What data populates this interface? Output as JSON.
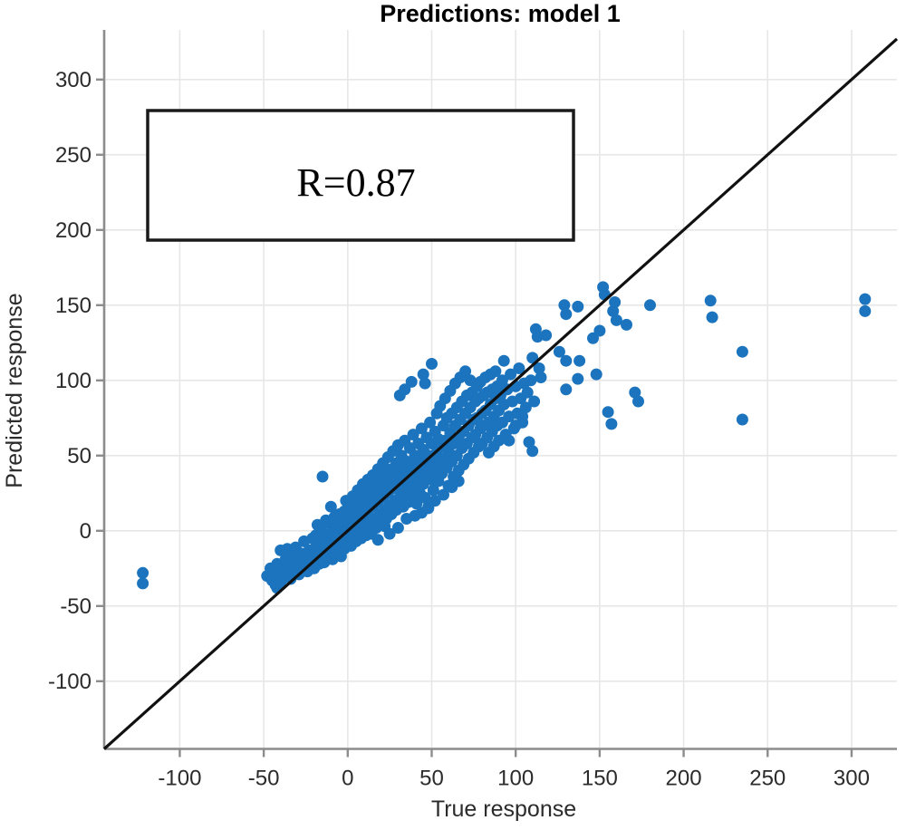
{
  "chart_data": {
    "type": "scatter",
    "title": "Predictions: model 1",
    "xlabel": "True response",
    "ylabel": "Predicted response",
    "annotation": "R=0.87",
    "xlim": [
      -145,
      327
    ],
    "ylim": [
      -145,
      333
    ],
    "xticks": [
      -100,
      -50,
      0,
      50,
      100,
      150,
      200,
      250,
      300
    ],
    "yticks": [
      -100,
      -50,
      0,
      50,
      100,
      150,
      200,
      250,
      300
    ],
    "grid": true,
    "identity_line": true,
    "legend": "none",
    "marker_radius_px": 6.5,
    "points": [
      [
        -48,
        -30
      ],
      [
        -46,
        -25
      ],
      [
        -45,
        -33
      ],
      [
        -44,
        -28
      ],
      [
        -43,
        -36
      ],
      [
        -42,
        -38
      ],
      [
        -42,
        -22
      ],
      [
        -41,
        -30
      ],
      [
        -40,
        -34
      ],
      [
        -40,
        -13
      ],
      [
        -39,
        -26
      ],
      [
        -38,
        -31
      ],
      [
        -37,
        -19
      ],
      [
        -36,
        -12
      ],
      [
        -36,
        -28
      ],
      [
        -35,
        -23
      ],
      [
        -34,
        -32
      ],
      [
        -33,
        -17
      ],
      [
        -32,
        -26
      ],
      [
        -31,
        -11
      ],
      [
        -30,
        -21
      ],
      [
        -29,
        -29
      ],
      [
        -28,
        -15
      ],
      [
        -27,
        -24
      ],
      [
        -26,
        -7
      ],
      [
        -25,
        -18
      ],
      [
        -24,
        -27
      ],
      [
        -23,
        -13
      ],
      [
        -22,
        -20
      ],
      [
        -21,
        -5
      ],
      [
        -20,
        -25
      ],
      [
        -20,
        -12
      ],
      [
        -19,
        -3
      ],
      [
        -18,
        -17
      ],
      [
        -18,
        4
      ],
      [
        -17,
        -22
      ],
      [
        -16,
        -9
      ],
      [
        -16,
        1
      ],
      [
        -15,
        -14
      ],
      [
        -14,
        -2
      ],
      [
        -14,
        -21
      ],
      [
        -13,
        7
      ],
      [
        -13,
        -11
      ],
      [
        -12,
        -17
      ],
      [
        -11,
        -5
      ],
      [
        -11,
        5
      ],
      [
        -10,
        -13
      ],
      [
        -10,
        16
      ],
      [
        -9,
        -1
      ],
      [
        -9,
        -19
      ],
      [
        -8,
        9
      ],
      [
        -8,
        -8
      ],
      [
        -7,
        -15
      ],
      [
        -6,
        2
      ],
      [
        -6,
        -3
      ],
      [
        -5,
        11
      ],
      [
        -5,
        -10
      ],
      [
        -4,
        -17
      ],
      [
        -3,
        5
      ],
      [
        -3,
        -5
      ],
      [
        -2,
        13
      ],
      [
        -2,
        -12
      ],
      [
        -1,
        0
      ],
      [
        -1,
        20
      ],
      [
        0,
        -8
      ],
      [
        0,
        7
      ],
      [
        1,
        10
      ],
      [
        1,
        -4
      ],
      [
        2,
        17
      ],
      [
        2,
        -10
      ],
      [
        3,
        4
      ],
      [
        3,
        23
      ],
      [
        4,
        -2
      ],
      [
        4,
        13
      ],
      [
        5,
        20
      ],
      [
        5,
        -7
      ],
      [
        6,
        7
      ],
      [
        6,
        27
      ],
      [
        7,
        1
      ],
      [
        7,
        14
      ],
      [
        8,
        -5
      ],
      [
        8,
        21
      ],
      [
        9,
        11
      ],
      [
        9,
        31
      ],
      [
        10,
        4
      ],
      [
        10,
        18
      ],
      [
        11,
        -3
      ],
      [
        11,
        24
      ],
      [
        12,
        13
      ],
      [
        12,
        34
      ],
      [
        13,
        6
      ],
      [
        13,
        21
      ],
      [
        14,
        -2
      ],
      [
        14,
        29
      ],
      [
        15,
        16
      ],
      [
        15,
        37
      ],
      [
        16,
        8
      ],
      [
        16,
        24
      ],
      [
        17,
        2
      ],
      [
        17,
        32
      ],
      [
        18,
        19
      ],
      [
        18,
        41
      ],
      [
        19,
        11
      ],
      [
        19,
        27
      ],
      [
        20,
        5
      ],
      [
        20,
        35
      ],
      [
        21,
        22
      ],
      [
        21,
        45
      ],
      [
        22,
        14
      ],
      [
        22,
        30
      ],
      [
        23,
        8
      ],
      [
        23,
        38
      ],
      [
        24,
        25
      ],
      [
        24,
        49
      ],
      [
        25,
        17
      ],
      [
        25,
        33
      ],
      [
        26,
        11
      ],
      [
        26,
        41
      ],
      [
        27,
        28
      ],
      [
        27,
        53
      ],
      [
        28,
        20
      ],
      [
        28,
        36
      ],
      [
        29,
        14
      ],
      [
        29,
        45
      ],
      [
        30,
        31
      ],
      [
        30,
        57
      ],
      [
        22,
        3
      ],
      [
        12,
        0
      ],
      [
        18,
        -6
      ],
      [
        25,
        -2
      ],
      [
        30,
        2
      ],
      [
        35,
        8
      ],
      [
        40,
        10
      ],
      [
        44,
        12
      ],
      [
        48,
        16
      ],
      [
        52,
        20
      ],
      [
        57,
        24
      ],
      [
        62,
        29
      ],
      [
        66,
        33
      ],
      [
        31,
        90
      ],
      [
        34,
        94
      ],
      [
        38,
        99
      ],
      [
        45,
        104
      ],
      [
        50,
        111
      ],
      [
        46,
        98
      ],
      [
        31,
        38
      ],
      [
        31,
        22
      ],
      [
        32,
        50
      ],
      [
        32,
        28
      ],
      [
        33,
        16
      ],
      [
        33,
        42
      ],
      [
        34,
        34
      ],
      [
        34,
        60
      ],
      [
        35,
        25
      ],
      [
        35,
        46
      ],
      [
        36,
        19
      ],
      [
        36,
        38
      ],
      [
        37,
        55
      ],
      [
        37,
        30
      ],
      [
        38,
        44
      ],
      [
        38,
        22
      ],
      [
        39,
        64
      ],
      [
        39,
        35
      ],
      [
        40,
        27
      ],
      [
        40,
        50
      ],
      [
        41,
        41
      ],
      [
        41,
        18
      ],
      [
        42,
        58
      ],
      [
        42,
        33
      ],
      [
        43,
        47
      ],
      [
        43,
        25
      ],
      [
        44,
        68
      ],
      [
        44,
        39
      ],
      [
        45,
        31
      ],
      [
        45,
        54
      ],
      [
        46,
        44
      ],
      [
        46,
        22
      ],
      [
        47,
        62
      ],
      [
        47,
        37
      ],
      [
        48,
        15
      ],
      [
        48,
        50
      ],
      [
        49,
        72
      ],
      [
        49,
        42
      ],
      [
        50,
        34
      ],
      [
        50,
        58
      ],
      [
        51,
        47
      ],
      [
        51,
        27
      ],
      [
        52,
        66
      ],
      [
        52,
        40
      ],
      [
        53,
        78
      ],
      [
        53,
        52
      ],
      [
        54,
        33
      ],
      [
        54,
        61
      ],
      [
        55,
        45
      ],
      [
        55,
        83
      ],
      [
        56,
        56
      ],
      [
        56,
        38
      ],
      [
        57,
        70
      ],
      [
        57,
        48
      ],
      [
        58,
        88
      ],
      [
        58,
        60
      ],
      [
        59,
        42
      ],
      [
        59,
        75
      ],
      [
        60,
        53
      ],
      [
        60,
        30
      ],
      [
        61,
        65
      ],
      [
        61,
        93
      ],
      [
        62,
        46
      ],
      [
        62,
        78
      ],
      [
        63,
        58
      ],
      [
        63,
        36
      ],
      [
        64,
        70
      ],
      [
        64,
        98
      ],
      [
        65,
        50
      ],
      [
        65,
        82
      ],
      [
        66,
        62
      ],
      [
        66,
        40
      ],
      [
        67,
        74
      ],
      [
        67,
        102
      ],
      [
        68,
        55
      ],
      [
        68,
        86
      ],
      [
        69,
        66
      ],
      [
        69,
        44
      ],
      [
        70,
        78
      ],
      [
        70,
        106
      ],
      [
        71,
        58
      ],
      [
        71,
        90
      ],
      [
        72,
        70
      ],
      [
        72,
        48
      ],
      [
        73,
        82
      ],
      [
        73,
        100
      ],
      [
        74,
        62
      ],
      [
        74,
        92
      ],
      [
        75,
        74
      ],
      [
        75,
        52
      ],
      [
        76,
        86
      ],
      [
        76,
        64
      ],
      [
        77,
        96
      ],
      [
        77,
        75
      ],
      [
        78,
        56
      ],
      [
        78,
        88
      ],
      [
        79,
        68
      ],
      [
        79,
        99
      ],
      [
        80,
        78
      ],
      [
        80,
        58
      ],
      [
        81,
        90
      ],
      [
        81,
        70
      ],
      [
        82,
        102
      ],
      [
        82,
        80
      ],
      [
        83,
        62
      ],
      [
        83,
        92
      ],
      [
        84,
        72
      ],
      [
        84,
        52
      ],
      [
        85,
        84
      ],
      [
        85,
        104
      ],
      [
        86,
        66
      ],
      [
        86,
        94
      ],
      [
        87,
        76
      ],
      [
        87,
        56
      ],
      [
        88,
        88
      ],
      [
        88,
        106
      ],
      [
        89,
        70
      ],
      [
        89,
        96
      ],
      [
        90,
        80
      ],
      [
        90,
        60
      ],
      [
        91,
        90
      ],
      [
        92,
        100
      ],
      [
        92,
        72
      ],
      [
        93,
        84
      ],
      [
        94,
        64
      ],
      [
        95,
        94
      ],
      [
        96,
        76
      ],
      [
        97,
        104
      ],
      [
        98,
        86
      ],
      [
        99,
        68
      ],
      [
        100,
        96
      ],
      [
        101,
        78
      ],
      [
        102,
        108
      ],
      [
        103,
        88
      ],
      [
        104,
        72
      ],
      [
        105,
        98
      ],
      [
        106,
        82
      ],
      [
        107,
        92
      ],
      [
        109,
        100
      ],
      [
        111,
        86
      ],
      [
        96,
        60
      ],
      [
        100,
        70
      ],
      [
        104,
        76
      ],
      [
        108,
        59
      ],
      [
        110,
        53
      ],
      [
        93,
        113
      ],
      [
        110,
        115
      ],
      [
        112,
        134
      ],
      [
        113,
        129
      ],
      [
        118,
        130
      ],
      [
        126,
        119
      ],
      [
        130,
        113
      ],
      [
        138,
        113
      ],
      [
        137,
        101
      ],
      [
        148,
        104
      ],
      [
        114,
        108
      ],
      [
        115,
        102
      ],
      [
        130,
        94
      ],
      [
        146,
        128
      ],
      [
        129,
        150
      ],
      [
        130,
        144
      ],
      [
        137,
        149
      ],
      [
        152,
        162
      ],
      [
        153,
        157
      ],
      [
        158,
        146
      ],
      [
        159,
        152
      ],
      [
        160,
        140
      ],
      [
        150,
        133
      ],
      [
        166,
        137
      ],
      [
        171,
        92
      ],
      [
        173,
        86
      ],
      [
        155,
        79
      ],
      [
        157,
        71
      ],
      [
        180,
        150
      ],
      [
        216,
        153
      ],
      [
        217,
        142
      ],
      [
        235,
        119
      ],
      [
        235,
        74
      ],
      [
        308,
        154
      ],
      [
        308,
        146
      ],
      [
        -122,
        -28
      ],
      [
        -122,
        -35
      ],
      [
        -15,
        36
      ]
    ]
  },
  "colors": {
    "marker": "#1b74bd",
    "identity_line": "#111111",
    "grid": "#e7e7e7",
    "axis": "#8c8c8c",
    "tick_label": "#2b2b2b",
    "title": "#000000",
    "annotation_border": "#1a1a1a",
    "annotation_fill": "#ffffff",
    "background": "#ffffff"
  }
}
